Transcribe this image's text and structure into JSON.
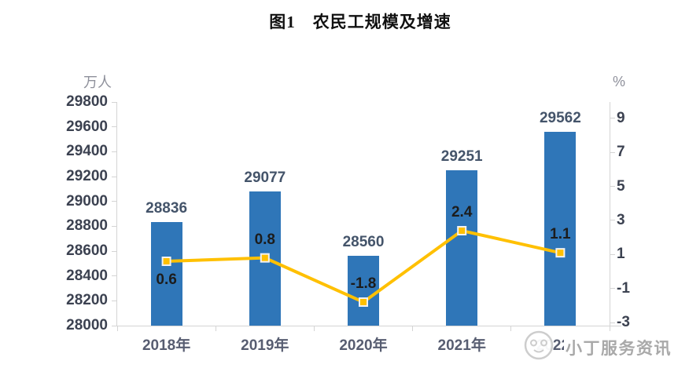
{
  "title": "图1　农民工规模及增速",
  "watermark": {
    "text": "小丁服务资讯",
    "icon": "cartoon-face-logo"
  },
  "chart_data": {
    "type": "combo_bar_line",
    "title": "图1　农民工规模及增速",
    "categories": [
      "2018年",
      "2019年",
      "2020年",
      "2021年",
      "2022年"
    ],
    "series": [
      {
        "role": "bar",
        "axis": "left",
        "unit": "万人",
        "color": "#2F76B8",
        "label_color": "#44546A",
        "values": [
          28836,
          29077,
          28560,
          29251,
          29562
        ]
      },
      {
        "role": "line",
        "axis": "right",
        "unit": "%",
        "color": "#FFC000",
        "marker": "square",
        "marker_border": "#F2F2F2",
        "label_color": "#1C1C1C",
        "values": [
          0.6,
          0.8,
          -1.8,
          2.4,
          1.1
        ],
        "label_positions": [
          "below",
          "above",
          "above",
          "above",
          "above"
        ]
      }
    ],
    "left_axis": {
      "title": "万人",
      "min": 28000,
      "max": 29800,
      "step": 200
    },
    "right_axis": {
      "title": "%",
      "min": -3,
      "max": 9,
      "step": 2,
      "ticks": [
        9,
        7,
        5,
        3,
        1,
        -1,
        -3
      ]
    },
    "grid": false,
    "legend": "none",
    "axis_line_color": "#D4D4D4"
  }
}
